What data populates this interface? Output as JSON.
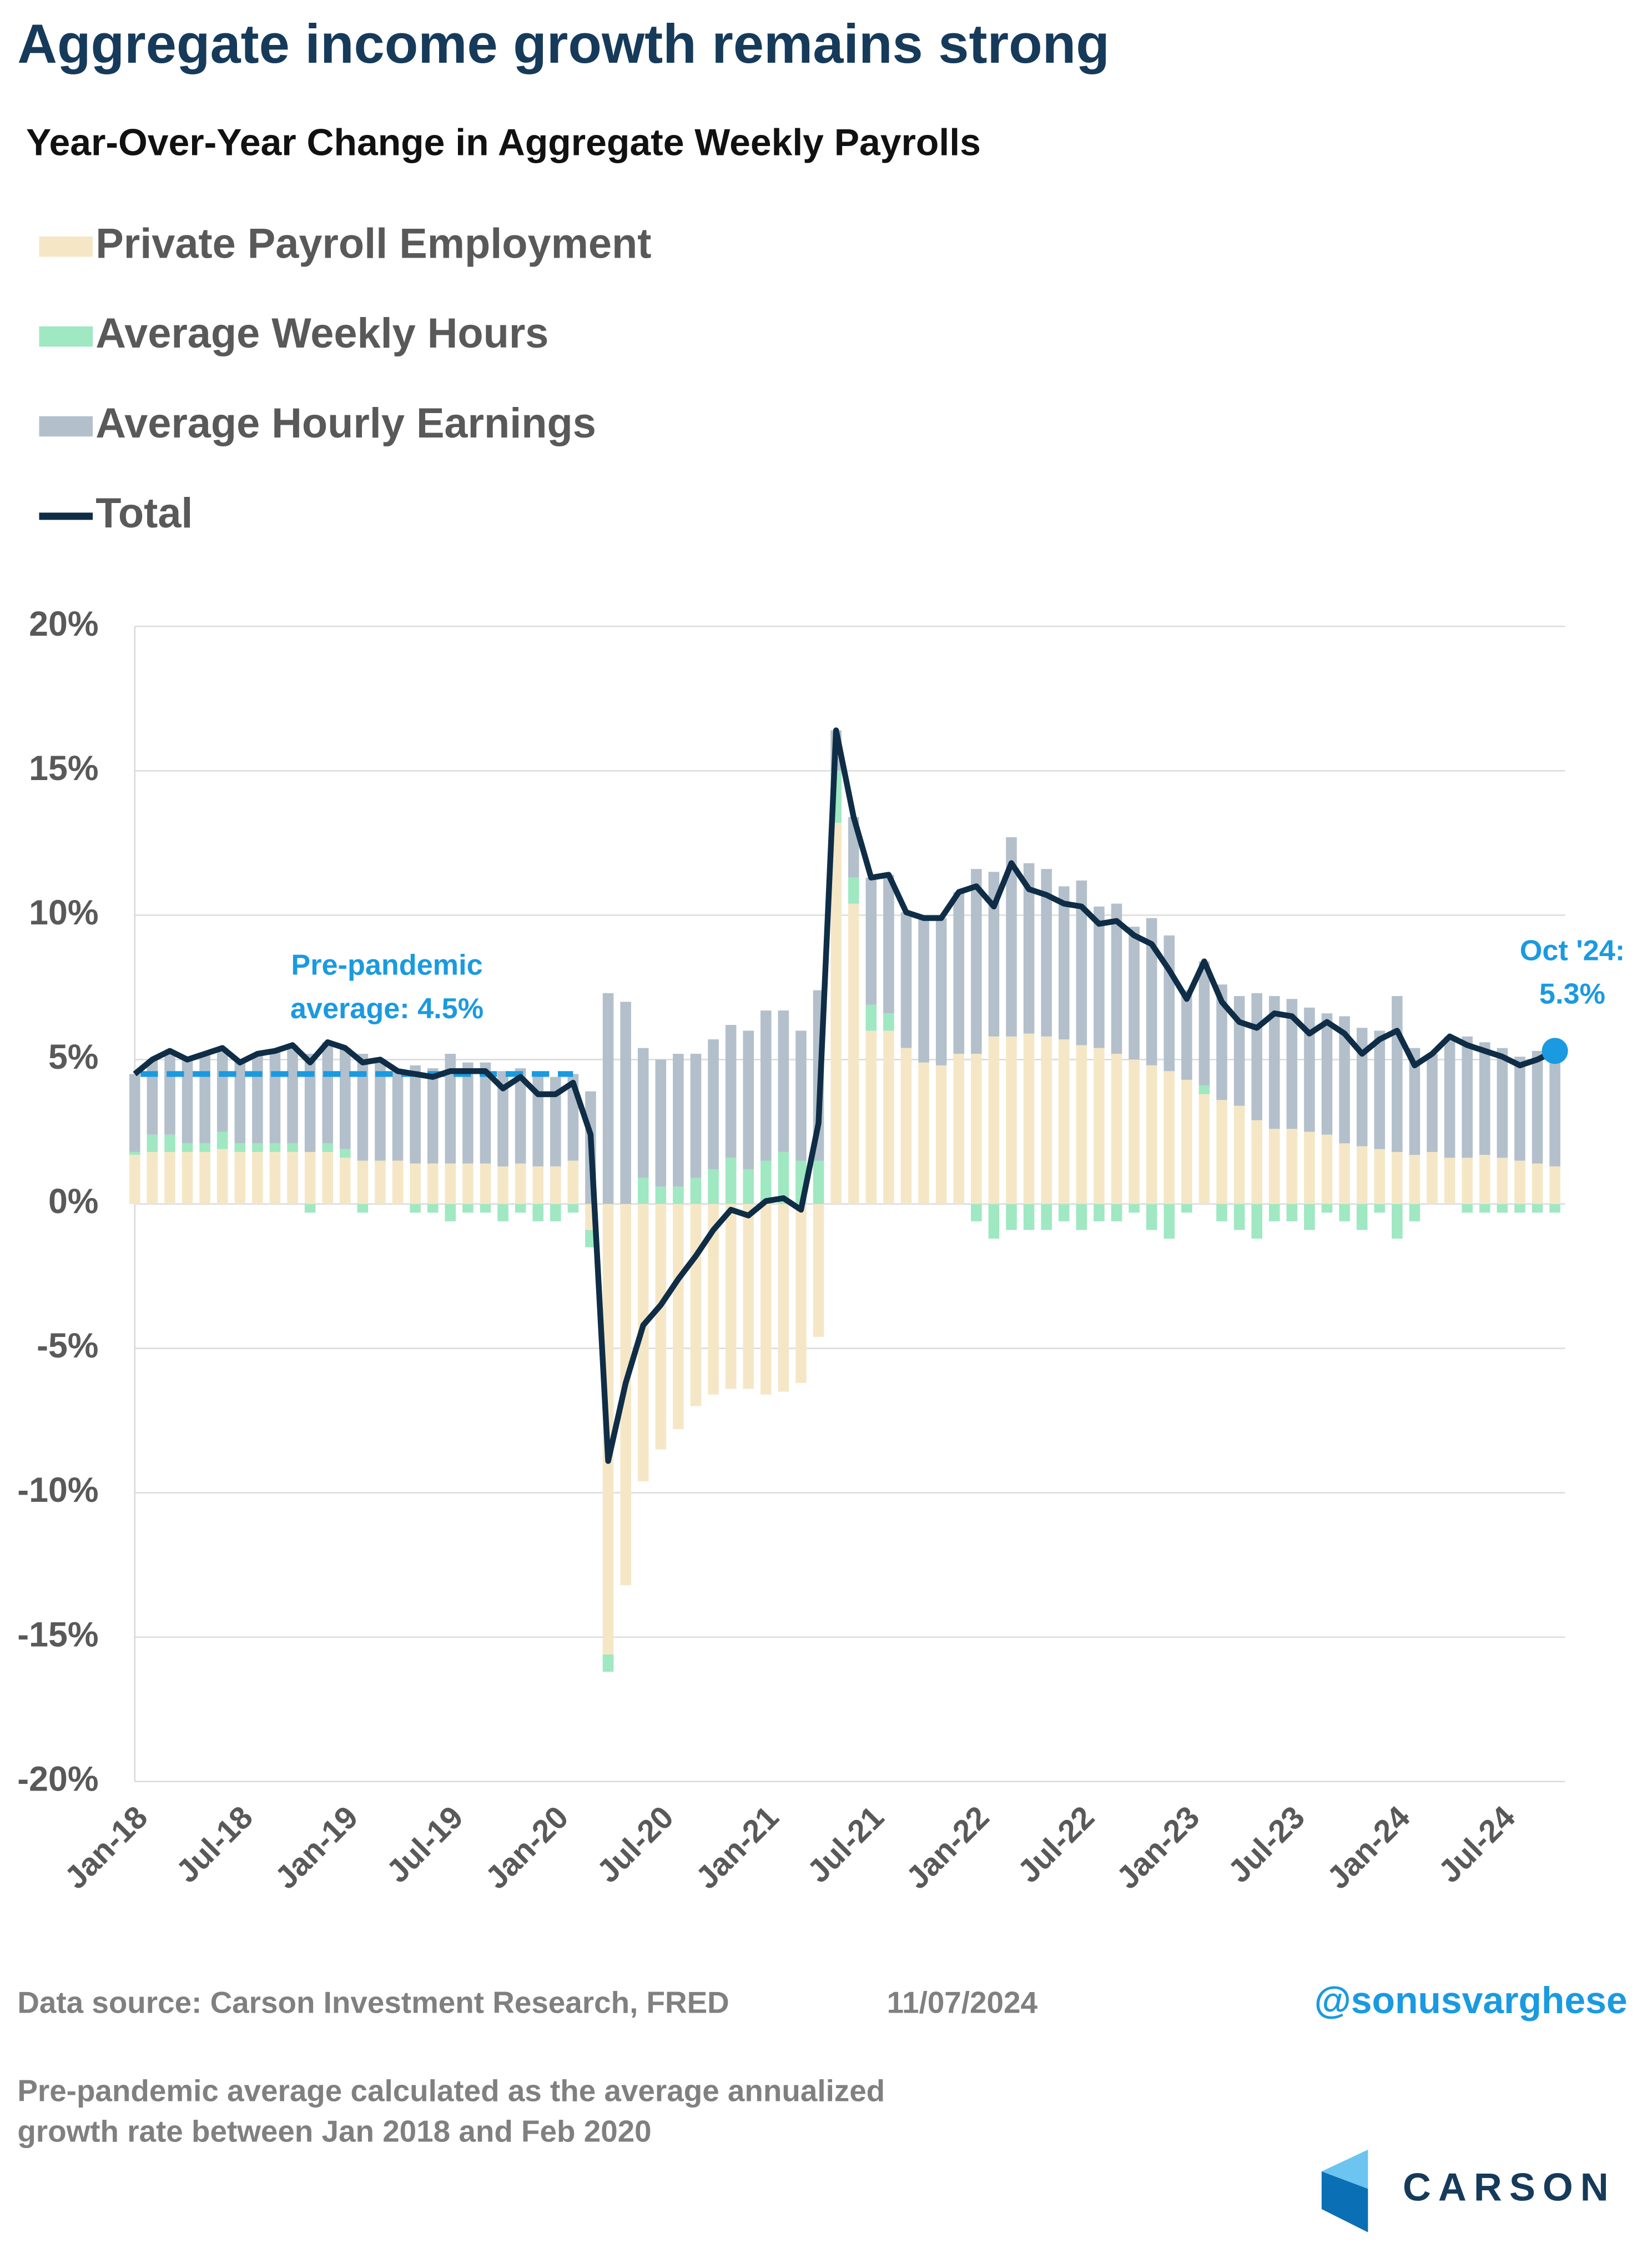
{
  "chart_data": {
    "type": "stacked-bar-line",
    "title": "Aggregate income growth remains strong",
    "subtitle": "Year-Over-Year Change in Aggregate Weekly Payrolls",
    "categories": [
      "Jan-18",
      null,
      null,
      null,
      null,
      null,
      "Jul-18",
      null,
      null,
      null,
      null,
      null,
      "Jan-19",
      null,
      null,
      null,
      null,
      null,
      "Jul-19",
      null,
      null,
      null,
      null,
      null,
      "Jan-20",
      null,
      null,
      null,
      null,
      null,
      "Jul-20",
      null,
      null,
      null,
      null,
      null,
      "Jan-21",
      null,
      null,
      null,
      null,
      null,
      "Jul-21",
      null,
      null,
      null,
      null,
      null,
      "Jan-22",
      null,
      null,
      null,
      null,
      null,
      "Jul-22",
      null,
      null,
      null,
      null,
      null,
      "Jan-23",
      null,
      null,
      null,
      null,
      null,
      "Jul-23",
      null,
      null,
      null,
      null,
      null,
      "Jan-24",
      null,
      null,
      null,
      null,
      null,
      "Jul-24",
      null,
      null,
      null
    ],
    "series": [
      {
        "name": "Private Payroll Employment",
        "color": "#f5e7c6",
        "kind": "bar",
        "values": [
          1.7,
          1.8,
          1.8,
          1.8,
          1.8,
          1.9,
          1.8,
          1.8,
          1.8,
          1.8,
          1.8,
          1.8,
          1.6,
          1.5,
          1.5,
          1.5,
          1.4,
          1.4,
          1.4,
          1.4,
          1.4,
          1.3,
          1.4,
          1.3,
          1.3,
          1.5,
          -0.9,
          -15.6,
          -13.2,
          -9.6,
          -8.5,
          -7.8,
          -7.0,
          -6.6,
          -6.4,
          -6.4,
          -6.6,
          -6.5,
          -6.2,
          -4.6,
          13.2,
          10.4,
          6.0,
          6.0,
          5.4,
          4.9,
          4.8,
          5.2,
          5.2,
          5.8,
          5.8,
          5.9,
          5.8,
          5.7,
          5.5,
          5.4,
          5.2,
          5.0,
          4.8,
          4.6,
          4.3,
          3.8,
          3.6,
          3.4,
          2.9,
          2.6,
          2.6,
          2.5,
          2.4,
          2.1,
          2.0,
          1.9,
          1.8,
          1.7,
          1.8,
          1.6,
          1.6,
          1.7,
          1.6,
          1.5,
          1.4,
          1.3
        ]
      },
      {
        "name": "Average Weekly Hours",
        "color": "#9fe8c2",
        "kind": "bar",
        "values": [
          0.1,
          0.6,
          0.6,
          0.3,
          0.3,
          0.6,
          0.3,
          0.3,
          0.3,
          0.3,
          -0.3,
          0.3,
          0.3,
          -0.3,
          0,
          0,
          -0.3,
          -0.3,
          -0.6,
          -0.3,
          -0.3,
          -0.6,
          -0.3,
          -0.6,
          -0.6,
          -0.3,
          -0.6,
          -0.6,
          0,
          0.9,
          0.6,
          0.6,
          0.9,
          1.2,
          1.6,
          1.2,
          1.5,
          1.8,
          1.5,
          1.5,
          1.8,
          0.9,
          0.9,
          0.6,
          0,
          0,
          0,
          0,
          -0.6,
          -1.2,
          -0.9,
          -0.9,
          -0.9,
          -0.6,
          -0.9,
          -0.6,
          -0.6,
          -0.3,
          -0.9,
          -1.2,
          -0.3,
          0.3,
          -0.6,
          -0.9,
          -1.2,
          -0.6,
          -0.6,
          -0.9,
          -0.3,
          -0.6,
          -0.9,
          -0.3,
          -1.2,
          -0.6,
          0,
          0,
          -0.3,
          -0.3,
          -0.3,
          -0.3,
          -0.3,
          -0.3
        ]
      },
      {
        "name": "Average Hourly Earnings",
        "color": "#b3c0cb",
        "kind": "bar",
        "values": [
          2.7,
          2.6,
          2.9,
          2.9,
          3.1,
          2.9,
          2.8,
          3.1,
          3.2,
          3.4,
          3.4,
          3.5,
          3.5,
          3.7,
          3.5,
          3.1,
          3.4,
          3.3,
          3.8,
          3.5,
          3.5,
          3.3,
          3.3,
          3.1,
          3.1,
          3.0,
          3.9,
          7.3,
          7.0,
          4.5,
          4.4,
          4.6,
          4.3,
          4.5,
          4.6,
          4.8,
          5.2,
          4.9,
          4.5,
          5.9,
          1.4,
          2.1,
          4.4,
          4.8,
          4.7,
          5.0,
          5.1,
          5.6,
          6.4,
          5.7,
          6.9,
          5.9,
          5.8,
          5.3,
          5.7,
          4.9,
          5.2,
          4.6,
          5.1,
          4.7,
          3.1,
          4.3,
          4.0,
          3.8,
          4.4,
          4.6,
          4.5,
          4.3,
          4.2,
          4.4,
          4.1,
          4.1,
          5.4,
          3.7,
          3.4,
          4.2,
          4.2,
          3.9,
          3.8,
          3.6,
          3.9,
          4.3
        ]
      },
      {
        "name": "Total",
        "color": "#0f2d46",
        "kind": "line",
        "values": [
          4.5,
          5.0,
          5.3,
          5.0,
          5.2,
          5.4,
          4.9,
          5.2,
          5.3,
          5.5,
          4.9,
          5.6,
          5.4,
          4.9,
          5.0,
          4.6,
          4.5,
          4.4,
          4.6,
          4.6,
          4.6,
          4.0,
          4.4,
          3.8,
          3.8,
          4.2,
          2.4,
          -8.9,
          -6.2,
          -4.2,
          -3.5,
          -2.6,
          -1.8,
          -0.9,
          -0.2,
          -0.4,
          0.1,
          0.2,
          -0.2,
          2.8,
          16.4,
          13.4,
          11.3,
          11.4,
          10.1,
          9.9,
          9.9,
          10.8,
          11.0,
          10.3,
          11.8,
          10.9,
          10.7,
          10.4,
          10.3,
          9.7,
          9.8,
          9.3,
          9.0,
          8.1,
          7.1,
          8.4,
          7.0,
          6.3,
          6.1,
          6.6,
          6.5,
          5.9,
          6.3,
          5.9,
          5.2,
          5.7,
          6.0,
          4.8,
          5.2,
          5.8,
          5.5,
          5.3,
          5.1,
          4.8,
          5.0,
          5.3
        ]
      }
    ],
    "ylim": [
      -20,
      20
    ],
    "yticks": [
      {
        "value": 20,
        "label": "20%"
      },
      {
        "value": 15,
        "label": "15%"
      },
      {
        "value": 10,
        "label": "10%"
      },
      {
        "value": 5,
        "label": "5%"
      },
      {
        "value": 0,
        "label": "0%"
      },
      {
        "value": -5,
        "label": "-5%"
      },
      {
        "value": -10,
        "label": "-10%"
      },
      {
        "value": -15,
        "label": "-15%"
      },
      {
        "value": -20,
        "label": "-20%"
      }
    ],
    "grid": true,
    "reference_line": {
      "value": 4.5,
      "color": "#1a9ae0",
      "label": [
        "Pre-pandemic",
        "average: 4.5%"
      ]
    },
    "end_annotation": {
      "label": [
        "Oct '24:",
        "5.3%"
      ],
      "color": "#1a9ae0"
    }
  },
  "footer": {
    "source": "Data source: Carson Investment Research, FRED",
    "date": "11/07/2024",
    "handle": "@sonusvarghese",
    "note": [
      "Pre-pandemic average calculated as the average annualized",
      "growth rate between Jan 2018 and Feb 2020"
    ],
    "logo": "CARSON"
  }
}
